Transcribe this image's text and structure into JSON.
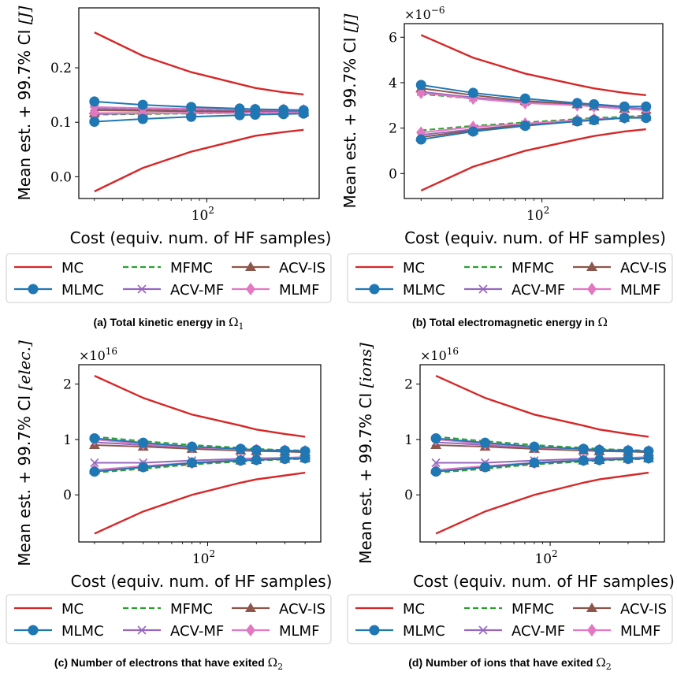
{
  "colors": {
    "MC": "#d62728",
    "MLMC": "#1f77b4",
    "MFMC": "#2ca02c",
    "ACV-MF": "#9467bd",
    "ACV-IS": "#8c564b",
    "MLMF": "#e377c2",
    "axis": "#000000",
    "background": "#ffffff"
  },
  "legend_entries": [
    {
      "name": "MC",
      "style": "solid",
      "marker": "none"
    },
    {
      "name": "MLMC",
      "style": "solid",
      "marker": "circle"
    },
    {
      "name": "MFMC",
      "style": "dashed",
      "marker": "none"
    },
    {
      "name": "ACV-MF",
      "style": "solid",
      "marker": "x"
    },
    {
      "name": "ACV-IS",
      "style": "solid",
      "marker": "triangle"
    },
    {
      "name": "MLMF",
      "style": "solid",
      "marker": "diamond"
    }
  ],
  "chart_data": [
    {
      "id": "a",
      "type": "line",
      "caption_prefix": "(a) Total kinetic energy in ",
      "caption_math": "Ω",
      "caption_sub": "1",
      "ylabel": "Mean est. + 99.7% CI [J]",
      "ylabel_text": "Mean est. + 99.7% CI ",
      "ylabel_unit": "[J]",
      "xlabel": "Cost (equiv. num. of HF samples)",
      "x_scale": "log",
      "multiplier_base": "",
      "multiplier_exp": "",
      "x_tick_labels": [
        {
          "base": "10",
          "exp": "2",
          "value": 100
        }
      ],
      "x": [
        20,
        40,
        80,
        160,
        200,
        300,
        400
      ],
      "xlim": [
        16,
        500
      ],
      "ylim": [
        -0.04,
        0.31
      ],
      "y_ticks": [
        {
          "value": 0.0,
          "label": "0.0"
        },
        {
          "value": 0.1,
          "label": "0.1"
        },
        {
          "value": 0.2,
          "label": "0.2"
        }
      ],
      "series": [
        {
          "name": "MC",
          "upper": [
            0.265,
            0.222,
            0.192,
            0.17,
            0.163,
            0.155,
            0.151
          ],
          "lower": [
            -0.027,
            0.016,
            0.046,
            0.068,
            0.075,
            0.082,
            0.086
          ]
        },
        {
          "name": "MFMC",
          "upper": [
            0.126,
            0.124,
            0.123,
            0.122,
            0.122,
            0.121,
            0.121
          ],
          "lower": [
            0.114,
            0.115,
            0.116,
            0.117,
            0.117,
            0.118,
            0.118
          ]
        },
        {
          "name": "ACV-MF",
          "upper": [
            0.125,
            0.123,
            0.122,
            0.121,
            0.121,
            0.121,
            0.12
          ],
          "lower": [
            0.115,
            0.116,
            0.117,
            0.117,
            0.118,
            0.118,
            0.118
          ]
        },
        {
          "name": "ACV-IS",
          "upper": [
            0.122,
            0.121,
            0.12,
            0.12,
            0.12,
            0.119,
            0.119
          ],
          "lower": [
            0.117,
            0.117,
            0.117,
            0.118,
            0.118,
            0.118,
            0.118
          ]
        },
        {
          "name": "MLMF",
          "upper": [
            0.128,
            0.126,
            0.125,
            0.124,
            0.123,
            0.123,
            0.122
          ],
          "lower": [
            0.117,
            0.116,
            0.117,
            0.117,
            0.118,
            0.118,
            0.118
          ]
        },
        {
          "name": "MLMC",
          "upper": [
            0.138,
            0.132,
            0.128,
            0.125,
            0.124,
            0.123,
            0.122
          ],
          "lower": [
            0.101,
            0.106,
            0.11,
            0.113,
            0.114,
            0.115,
            0.116
          ]
        }
      ]
    },
    {
      "id": "b",
      "type": "line",
      "caption_prefix": "(b) Total electromagnetic energy in ",
      "caption_math": "Ω",
      "caption_sub": "",
      "ylabel": "Mean est. + 99.7% CI [J]",
      "ylabel_text": "Mean est. + 99.7% CI ",
      "ylabel_unit": "[J]",
      "xlabel": "Cost (equiv. num. of HF samples)",
      "x_scale": "log",
      "multiplier_base": "×10",
      "multiplier_exp": "−6",
      "x_tick_labels": [
        {
          "base": "10",
          "exp": "2",
          "value": 100
        }
      ],
      "x": [
        20,
        40,
        80,
        160,
        200,
        300,
        400
      ],
      "xlim": [
        16,
        500
      ],
      "ylim": [
        -1.1,
        6.6
      ],
      "y_ticks": [
        {
          "value": 0,
          "label": "0"
        },
        {
          "value": 2,
          "label": "2"
        },
        {
          "value": 4,
          "label": "4"
        },
        {
          "value": 6,
          "label": "6"
        }
      ],
      "series": [
        {
          "name": "MC",
          "upper": [
            6.1,
            5.1,
            4.4,
            3.9,
            3.75,
            3.55,
            3.45
          ],
          "lower": [
            -0.75,
            0.3,
            1.0,
            1.5,
            1.65,
            1.85,
            1.95
          ]
        },
        {
          "name": "MFMC",
          "upper": [
            3.5,
            3.3,
            3.15,
            3.0,
            2.95,
            2.85,
            2.8
          ],
          "lower": [
            1.9,
            2.1,
            2.25,
            2.4,
            2.45,
            2.5,
            2.55
          ]
        },
        {
          "name": "ACV-MF",
          "upper": [
            3.6,
            3.35,
            3.15,
            3.05,
            3.0,
            2.9,
            2.85
          ],
          "lower": [
            1.7,
            1.95,
            2.15,
            2.3,
            2.35,
            2.45,
            2.5
          ]
        },
        {
          "name": "ACV-IS",
          "upper": [
            3.75,
            3.45,
            3.2,
            3.05,
            2.95,
            2.85,
            2.8
          ],
          "lower": [
            1.6,
            1.9,
            2.15,
            2.3,
            2.35,
            2.45,
            2.5
          ]
        },
        {
          "name": "MLMF",
          "upper": [
            3.55,
            3.3,
            3.1,
            3.0,
            2.95,
            2.85,
            2.8
          ],
          "lower": [
            1.8,
            2.05,
            2.2,
            2.35,
            2.4,
            2.45,
            2.5
          ]
        },
        {
          "name": "MLMC",
          "upper": [
            3.9,
            3.55,
            3.3,
            3.1,
            3.05,
            2.95,
            2.95
          ],
          "lower": [
            1.5,
            1.85,
            2.1,
            2.3,
            2.35,
            2.45,
            2.45
          ]
        }
      ]
    },
    {
      "id": "c",
      "type": "line",
      "caption_prefix": "(c) Number of electrons that have exited ",
      "caption_math": "Ω",
      "caption_sub": "2",
      "ylabel": "Mean est. + 99.7% CI [elec.]",
      "ylabel_text": "Mean est. + 99.7% CI ",
      "ylabel_unit": "[elec.]",
      "xlabel": "Cost (equiv. num. of HF samples)",
      "x_scale": "log",
      "multiplier_base": "×10",
      "multiplier_exp": "16",
      "x_tick_labels": [
        {
          "base": "10",
          "exp": "2",
          "value": 100
        }
      ],
      "x": [
        20,
        40,
        80,
        160,
        200,
        300,
        400
      ],
      "xlim": [
        16,
        500
      ],
      "ylim": [
        -0.85,
        2.35
      ],
      "y_ticks": [
        {
          "value": 0,
          "label": "0"
        },
        {
          "value": 1,
          "label": "1"
        },
        {
          "value": 2,
          "label": "2"
        }
      ],
      "series": [
        {
          "name": "MC",
          "upper": [
            2.15,
            1.75,
            1.45,
            1.25,
            1.18,
            1.1,
            1.05
          ],
          "lower": [
            -0.7,
            -0.3,
            0.0,
            0.22,
            0.28,
            0.35,
            0.4
          ]
        },
        {
          "name": "MFMC",
          "upper": [
            1.05,
            0.97,
            0.9,
            0.85,
            0.83,
            0.81,
            0.8
          ],
          "lower": [
            0.4,
            0.47,
            0.55,
            0.6,
            0.62,
            0.64,
            0.65
          ]
        },
        {
          "name": "ACV-MF",
          "upper": [
            0.95,
            0.9,
            0.85,
            0.82,
            0.8,
            0.79,
            0.78
          ],
          "lower": [
            0.58,
            0.58,
            0.62,
            0.65,
            0.66,
            0.67,
            0.68
          ]
        },
        {
          "name": "ACV-IS",
          "upper": [
            0.9,
            0.87,
            0.83,
            0.8,
            0.79,
            0.78,
            0.77
          ],
          "lower": [
            0.45,
            0.5,
            0.57,
            0.62,
            0.63,
            0.65,
            0.66
          ]
        },
        {
          "name": "MLMF",
          "upper": [
            1.0,
            0.92,
            0.86,
            0.82,
            0.81,
            0.8,
            0.79
          ],
          "lower": [
            0.45,
            0.52,
            0.58,
            0.63,
            0.64,
            0.66,
            0.67
          ]
        },
        {
          "name": "MLMC",
          "upper": [
            1.02,
            0.94,
            0.87,
            0.83,
            0.81,
            0.8,
            0.79
          ],
          "lower": [
            0.42,
            0.5,
            0.58,
            0.62,
            0.63,
            0.65,
            0.66
          ]
        }
      ]
    },
    {
      "id": "d",
      "type": "line",
      "caption_prefix": "(d) Number of ions that have exited ",
      "caption_math": "Ω",
      "caption_sub": "2",
      "ylabel": "Mean est. + 99.7% CI [ions]",
      "ylabel_text": "Mean est. + 99.7% CI ",
      "ylabel_unit": "[ions]",
      "xlabel": "Cost (equiv. num. of HF samples)",
      "x_scale": "log",
      "multiplier_base": "×10",
      "multiplier_exp": "16",
      "x_tick_labels": [
        {
          "base": "10",
          "exp": "2",
          "value": 100
        }
      ],
      "x": [
        20,
        40,
        80,
        160,
        200,
        300,
        400
      ],
      "xlim": [
        16,
        500
      ],
      "ylim": [
        -0.85,
        2.35
      ],
      "y_ticks": [
        {
          "value": 0,
          "label": "0"
        },
        {
          "value": 1,
          "label": "1"
        },
        {
          "value": 2,
          "label": "2"
        }
      ],
      "series": [
        {
          "name": "MC",
          "upper": [
            2.15,
            1.75,
            1.45,
            1.25,
            1.18,
            1.1,
            1.05
          ],
          "lower": [
            -0.7,
            -0.3,
            0.0,
            0.22,
            0.28,
            0.35,
            0.4
          ]
        },
        {
          "name": "MFMC",
          "upper": [
            1.05,
            0.97,
            0.9,
            0.85,
            0.83,
            0.81,
            0.8
          ],
          "lower": [
            0.4,
            0.47,
            0.55,
            0.6,
            0.62,
            0.64,
            0.65
          ]
        },
        {
          "name": "ACV-MF",
          "upper": [
            0.95,
            0.9,
            0.85,
            0.82,
            0.8,
            0.79,
            0.78
          ],
          "lower": [
            0.58,
            0.58,
            0.62,
            0.65,
            0.66,
            0.67,
            0.68
          ]
        },
        {
          "name": "ACV-IS",
          "upper": [
            0.9,
            0.87,
            0.83,
            0.8,
            0.79,
            0.78,
            0.77
          ],
          "lower": [
            0.45,
            0.5,
            0.57,
            0.62,
            0.63,
            0.65,
            0.66
          ]
        },
        {
          "name": "MLMF",
          "upper": [
            1.0,
            0.92,
            0.86,
            0.82,
            0.81,
            0.8,
            0.79
          ],
          "lower": [
            0.45,
            0.52,
            0.58,
            0.63,
            0.64,
            0.66,
            0.67
          ]
        },
        {
          "name": "MLMC",
          "upper": [
            1.02,
            0.94,
            0.87,
            0.83,
            0.81,
            0.8,
            0.79
          ],
          "lower": [
            0.42,
            0.5,
            0.58,
            0.62,
            0.63,
            0.65,
            0.66
          ]
        }
      ]
    }
  ]
}
